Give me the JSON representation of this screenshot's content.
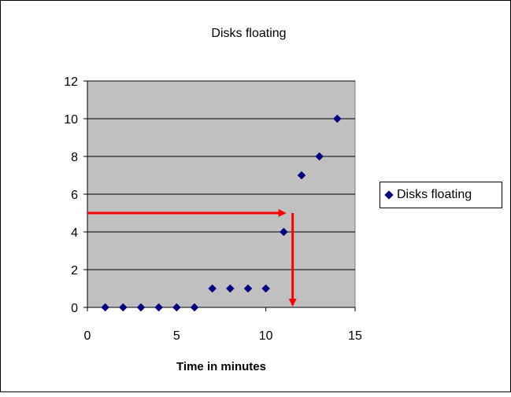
{
  "chart_data": {
    "type": "scatter",
    "title": "Disks floating",
    "xlabel": "Time in minutes",
    "ylabel": "",
    "xlim": [
      0,
      15
    ],
    "ylim": [
      0,
      12
    ],
    "xticks": [
      "0",
      "5",
      "10",
      "15"
    ],
    "yticks": [
      "0",
      "2",
      "4",
      "6",
      "8",
      "10",
      "12"
    ],
    "grid": true,
    "legend_position": "right",
    "plot_background": "#c0c0c0",
    "series": [
      {
        "name": "Disks floating",
        "color": "#000080",
        "marker": "diamond",
        "x": [
          1,
          2,
          3,
          4,
          5,
          6,
          7,
          8,
          9,
          10,
          11,
          12,
          13,
          14
        ],
        "y": [
          0,
          0,
          0,
          0,
          0,
          0,
          1,
          1,
          1,
          1,
          4,
          7,
          8,
          10
        ]
      }
    ],
    "annotations": [
      {
        "type": "arrow-path",
        "color": "#ff0000",
        "points": [
          [
            0,
            5
          ],
          [
            11.5,
            5
          ],
          [
            11.5,
            0
          ]
        ]
      }
    ]
  }
}
